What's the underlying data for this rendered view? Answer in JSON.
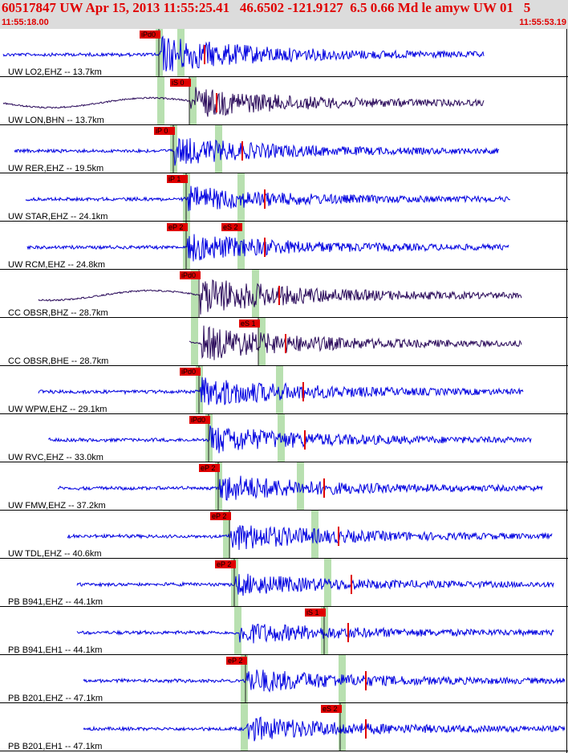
{
  "header": {
    "title": "60517847 UW Apr 15, 2013 11:55:25.41   46.6502 -121.9127  6.5 0.66 Md le amyw UW 01   5",
    "time_start": "11:55:18.00",
    "time_end": "11:55:53.19"
  },
  "colors": {
    "trace": "#0000e0",
    "trace_dark": "#2a0a5a",
    "pick_box": "#e00000",
    "pick_window": "#b8e0b0",
    "header_bg": "#dcdcdc",
    "title": "#e00000"
  },
  "traces": [
    {
      "label": "UW LO2,EHZ -- 13.7km",
      "picks": [
        "iPd0"
      ],
      "color": "blue"
    },
    {
      "label": "UW LON,BHN -- 13.7km",
      "picks": [
        "iS 0"
      ],
      "color": "dark"
    },
    {
      "label": "UW RER,EHZ -- 19.5km",
      "picks": [
        "iP 0"
      ],
      "color": "blue"
    },
    {
      "label": "UW STAR,EHZ -- 24.1km",
      "picks": [
        "iP 1"
      ],
      "color": "blue"
    },
    {
      "label": "UW RCM,EHZ -- 24.8km",
      "picks": [
        "eP 2",
        "eS 2"
      ],
      "color": "blue"
    },
    {
      "label": "CC OBSR,BHZ -- 28.7km",
      "picks": [
        "iPd0"
      ],
      "color": "dark"
    },
    {
      "label": "CC OBSR,BHE -- 28.7km",
      "picks": [
        "eS 1"
      ],
      "color": "dark"
    },
    {
      "label": "UW WPW,EHZ -- 29.1km",
      "picks": [
        "iPd0"
      ],
      "color": "blue"
    },
    {
      "label": "UW RVC,EHZ -- 33.0km",
      "picks": [
        "iPd0"
      ],
      "color": "blue"
    },
    {
      "label": "UW FMW,EHZ -- 37.2km",
      "picks": [
        "eP 2"
      ],
      "color": "blue"
    },
    {
      "label": "UW TDL,EHZ -- 40.6km",
      "picks": [
        "eP 2"
      ],
      "color": "blue"
    },
    {
      "label": "PB B941,EHZ -- 44.1km",
      "picks": [
        "eP 2"
      ],
      "color": "blue"
    },
    {
      "label": "PB B941,EH1 -- 44.1km",
      "picks": [
        "iS 1"
      ],
      "color": "blue"
    },
    {
      "label": "PB B201,EHZ -- 47.1km",
      "picks": [
        "eP 2"
      ],
      "color": "blue"
    },
    {
      "label": "PB B201,EH1 -- 47.1km",
      "picks": [
        "eS 2"
      ],
      "color": "blue"
    }
  ]
}
